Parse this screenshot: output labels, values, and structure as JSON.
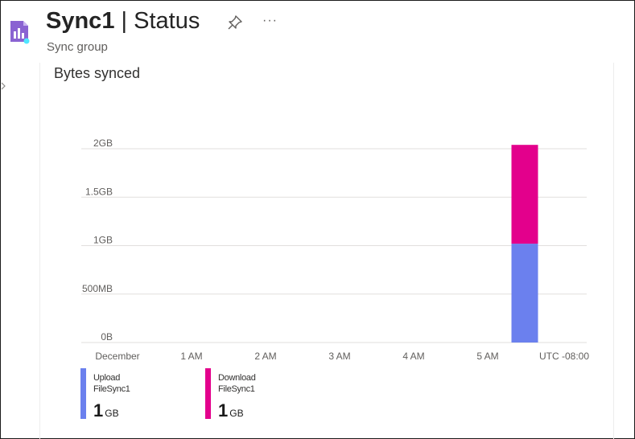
{
  "header": {
    "title_main": "Sync1",
    "title_sep": " | ",
    "title_section": "Status",
    "subtitle": "Sync group",
    "pin_icon": "pin-icon",
    "more_label": "···"
  },
  "colors": {
    "upload": "#6b80ee",
    "download": "#e3008c",
    "grid": "#e1dfdd",
    "axis_text": "#605e5c"
  },
  "chart_data": {
    "type": "bar",
    "stacked": true,
    "title": "Bytes synced",
    "x_ticks": [
      "December",
      "1 AM",
      "2 AM",
      "3 AM",
      "4 AM",
      "5 AM",
      "UTC -08:00"
    ],
    "y_ticks": [
      "2GB",
      "1.5GB",
      "1GB",
      "500MB",
      "0B"
    ],
    "ylim": [
      0,
      2
    ],
    "y_unit": "GB",
    "grid": true,
    "legend_position": "bottom-left",
    "series": [
      {
        "name": "Upload FileSync1",
        "color": "#6b80ee",
        "bars": [
          {
            "x_hours": 5.5,
            "value": 1.02
          }
        ]
      },
      {
        "name": "Download FileSync1",
        "color": "#e3008c",
        "bars": [
          {
            "x_hours": 5.5,
            "value": 1.02
          }
        ]
      }
    ]
  },
  "legend": [
    {
      "line1": "Upload",
      "line2": "FileSync1",
      "value": "1",
      "unit": "GB"
    },
    {
      "line1": "Download",
      "line2": "FileSync1",
      "value": "1",
      "unit": "GB"
    }
  ]
}
